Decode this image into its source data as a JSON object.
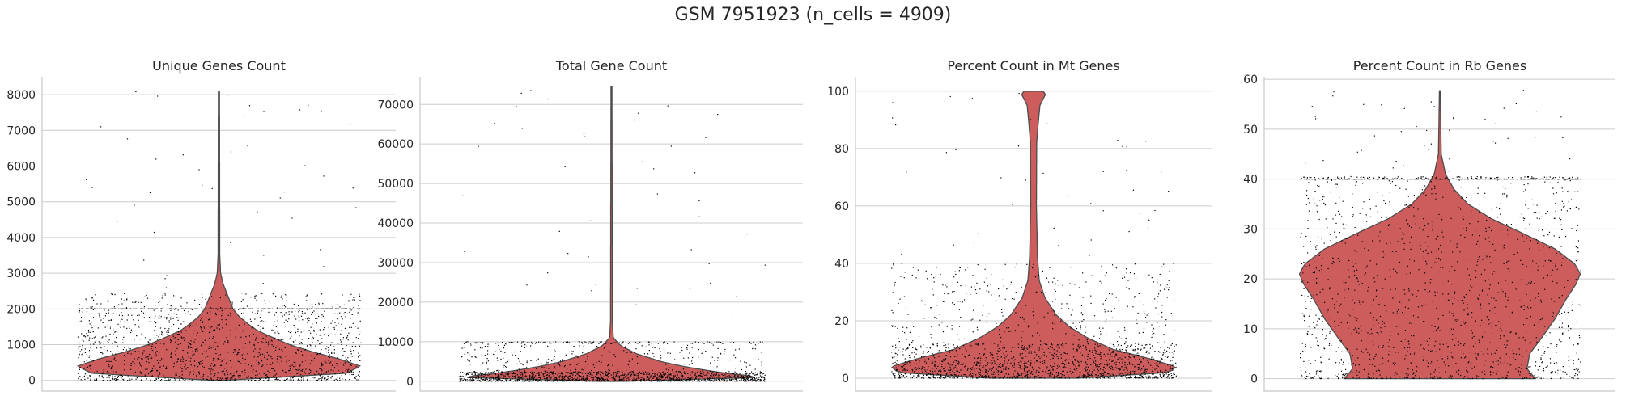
{
  "figure_title": "GSM 7951923 (n_cells = 4909)",
  "colors": {
    "violin_fill": "#cd5c5c",
    "violin_edge": "#4d4d4d",
    "points": "#000000",
    "grid": "#cccccc"
  },
  "chart_data": [
    {
      "type": "violin",
      "title": "Unique Genes Count",
      "yticks": [
        0,
        1000,
        2000,
        3000,
        4000,
        5000,
        6000,
        7000,
        8000
      ],
      "ylim": [
        -300,
        8500
      ],
      "grid": true,
      "violin_profile": [
        [
          0,
          0.04
        ],
        [
          200,
          0.9
        ],
        [
          400,
          1.0
        ],
        [
          600,
          0.85
        ],
        [
          800,
          0.66
        ],
        [
          1000,
          0.5
        ],
        [
          1200,
          0.38
        ],
        [
          1400,
          0.27
        ],
        [
          1600,
          0.2
        ],
        [
          1800,
          0.14
        ],
        [
          2000,
          0.1
        ],
        [
          2300,
          0.07
        ],
        [
          2700,
          0.03
        ],
        [
          3000,
          0.012
        ],
        [
          3500,
          0.006
        ],
        [
          8100,
          0.004
        ]
      ],
      "strip": {
        "bulk_max": 2000,
        "cap": 2000,
        "bulk_to": 2450,
        "tail_max": 8100
      }
    },
    {
      "type": "violin",
      "title": "Total Gene Count",
      "yticks": [
        0,
        10000,
        20000,
        30000,
        40000,
        50000,
        60000,
        70000
      ],
      "ylim": [
        -2500,
        77000
      ],
      "grid": true,
      "violin_profile": [
        [
          0,
          0.08
        ],
        [
          1000,
          1.0
        ],
        [
          2000,
          0.75
        ],
        [
          3500,
          0.5
        ],
        [
          5000,
          0.32
        ],
        [
          7000,
          0.16
        ],
        [
          9000,
          0.06
        ],
        [
          11000,
          0.012
        ],
        [
          15000,
          0.006
        ],
        [
          74500,
          0.003
        ]
      ],
      "strip": {
        "bulk_max": 2500,
        "cap": 9500,
        "bulk_to": 10000,
        "tail_max": 75000
      }
    },
    {
      "type": "violin",
      "title": "Percent Count in Mt Genes",
      "yticks": [
        0,
        20,
        40,
        60,
        80,
        100
      ],
      "ylim": [
        -4.5,
        105
      ],
      "grid": true,
      "violin_profile": [
        [
          0,
          0.3
        ],
        [
          2,
          0.95
        ],
        [
          4,
          1.0
        ],
        [
          7,
          0.8
        ],
        [
          10,
          0.56
        ],
        [
          14,
          0.38
        ],
        [
          18,
          0.25
        ],
        [
          22,
          0.16
        ],
        [
          28,
          0.08
        ],
        [
          34,
          0.04
        ],
        [
          42,
          0.028
        ],
        [
          60,
          0.02
        ],
        [
          82,
          0.022
        ],
        [
          90,
          0.035
        ],
        [
          95,
          0.045
        ],
        [
          99,
          0.085
        ],
        [
          100,
          0.065
        ]
      ],
      "strip": {
        "bulk_max": 12,
        "cap": 30,
        "bulk_to": 40,
        "tail_max": 100
      }
    },
    {
      "type": "violin",
      "title": "Percent Count in Rb Genes",
      "yticks": [
        0,
        10,
        20,
        30,
        40,
        50,
        60
      ],
      "ylim": [
        -2.5,
        60.5
      ],
      "grid": true,
      "violin_profile": [
        [
          0,
          0.68
        ],
        [
          2,
          0.62
        ],
        [
          5,
          0.64
        ],
        [
          8,
          0.72
        ],
        [
          12,
          0.82
        ],
        [
          16,
          0.9
        ],
        [
          19,
          0.97
        ],
        [
          21,
          1.0
        ],
        [
          23,
          0.96
        ],
        [
          26,
          0.82
        ],
        [
          29,
          0.6
        ],
        [
          32,
          0.37
        ],
        [
          35,
          0.2
        ],
        [
          38,
          0.1
        ],
        [
          41,
          0.04
        ],
        [
          45,
          0.01
        ],
        [
          57.7,
          0.003
        ]
      ],
      "strip": {
        "bulk_max": 40,
        "cap": 40,
        "bulk_to": 40.5,
        "tail_max": 58
      }
    }
  ]
}
